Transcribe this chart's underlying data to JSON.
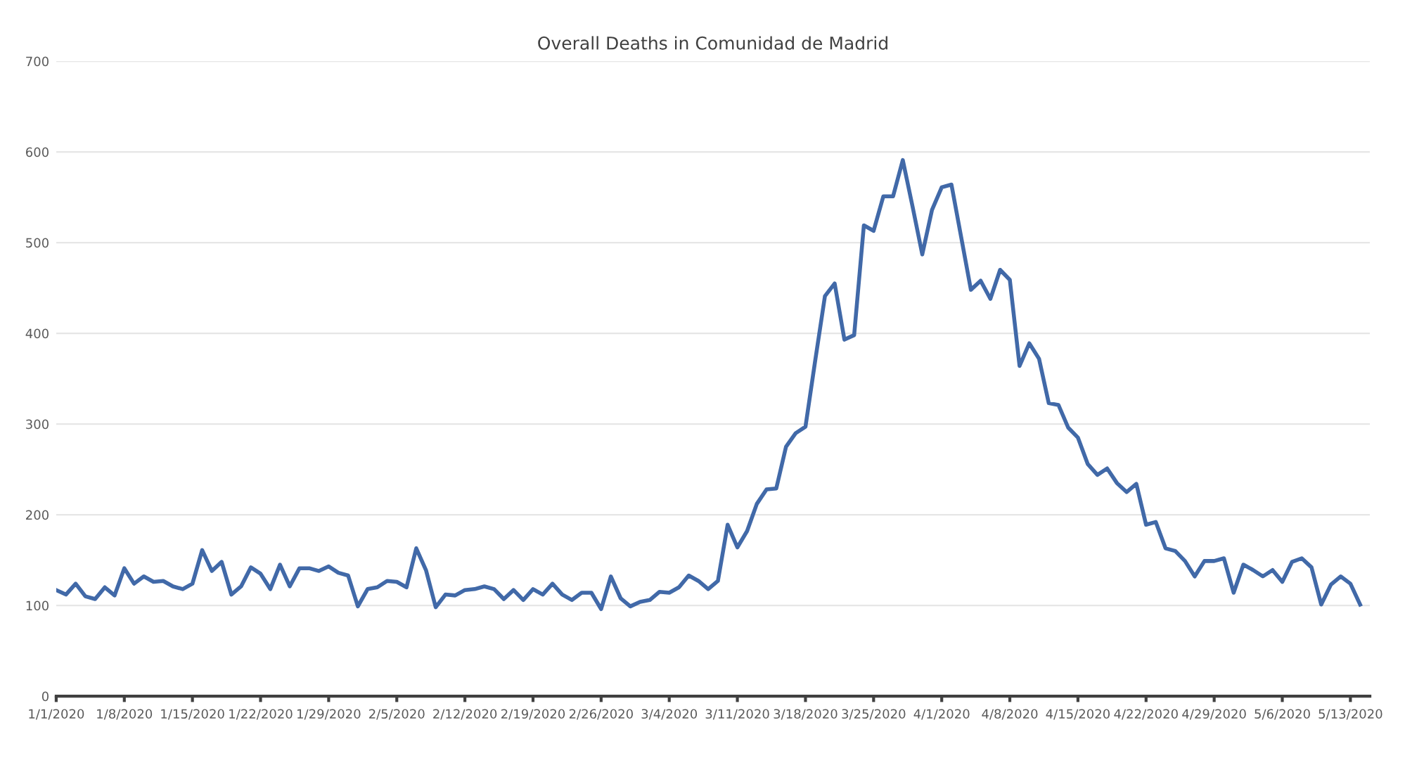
{
  "chart_data": {
    "type": "line",
    "title": "Overall Deaths in Comunidad de Madrid",
    "x": [
      "2020-01-01",
      "2020-01-02",
      "2020-01-03",
      "2020-01-04",
      "2020-01-05",
      "2020-01-06",
      "2020-01-07",
      "2020-01-08",
      "2020-01-09",
      "2020-01-10",
      "2020-01-11",
      "2020-01-12",
      "2020-01-13",
      "2020-01-14",
      "2020-01-15",
      "2020-01-16",
      "2020-01-17",
      "2020-01-18",
      "2020-01-19",
      "2020-01-20",
      "2020-01-21",
      "2020-01-22",
      "2020-01-23",
      "2020-01-24",
      "2020-01-25",
      "2020-01-26",
      "2020-01-27",
      "2020-01-28",
      "2020-01-29",
      "2020-01-30",
      "2020-01-31",
      "2020-02-01",
      "2020-02-02",
      "2020-02-03",
      "2020-02-04",
      "2020-02-05",
      "2020-02-06",
      "2020-02-07",
      "2020-02-08",
      "2020-02-09",
      "2020-02-10",
      "2020-02-11",
      "2020-02-12",
      "2020-02-13",
      "2020-02-14",
      "2020-02-15",
      "2020-02-16",
      "2020-02-17",
      "2020-02-18",
      "2020-02-19",
      "2020-02-20",
      "2020-02-21",
      "2020-02-22",
      "2020-02-23",
      "2020-02-24",
      "2020-02-25",
      "2020-02-26",
      "2020-02-27",
      "2020-02-28",
      "2020-02-29",
      "2020-03-01",
      "2020-03-02",
      "2020-03-03",
      "2020-03-04",
      "2020-03-05",
      "2020-03-06",
      "2020-03-07",
      "2020-03-08",
      "2020-03-09",
      "2020-03-10",
      "2020-03-11",
      "2020-03-12",
      "2020-03-13",
      "2020-03-14",
      "2020-03-15",
      "2020-03-16",
      "2020-03-17",
      "2020-03-18",
      "2020-03-19",
      "2020-03-20",
      "2020-03-21",
      "2020-03-22",
      "2020-03-23",
      "2020-03-24",
      "2020-03-25",
      "2020-03-26",
      "2020-03-27",
      "2020-03-28",
      "2020-03-29",
      "2020-03-30",
      "2020-03-31",
      "2020-04-01",
      "2020-04-02",
      "2020-04-03",
      "2020-04-04",
      "2020-04-05",
      "2020-04-06",
      "2020-04-07",
      "2020-04-08",
      "2020-04-09",
      "2020-04-10",
      "2020-04-11",
      "2020-04-12",
      "2020-04-13",
      "2020-04-14",
      "2020-04-15",
      "2020-04-16",
      "2020-04-17",
      "2020-04-18",
      "2020-04-19",
      "2020-04-20",
      "2020-04-21",
      "2020-04-22",
      "2020-04-23",
      "2020-04-24",
      "2020-04-25",
      "2020-04-26",
      "2020-04-27",
      "2020-04-28",
      "2020-04-29",
      "2020-04-30",
      "2020-05-01",
      "2020-05-02",
      "2020-05-03",
      "2020-05-04",
      "2020-05-05",
      "2020-05-06",
      "2020-05-07",
      "2020-05-08",
      "2020-05-09",
      "2020-05-10",
      "2020-05-11",
      "2020-05-12",
      "2020-05-13",
      "2020-05-14"
    ],
    "series": [
      {
        "color": "#4169a8",
        "values": [
          117,
          112,
          124,
          110,
          107,
          120,
          111,
          141,
          124,
          132,
          126,
          127,
          121,
          118,
          124,
          161,
          138,
          148,
          112,
          121,
          142,
          135,
          118,
          145,
          121,
          141,
          141,
          138,
          143,
          136,
          133,
          99,
          118,
          120,
          127,
          126,
          120,
          163,
          139,
          98,
          112,
          111,
          117,
          118,
          121,
          118,
          107,
          117,
          106,
          118,
          112,
          124,
          112,
          106,
          114,
          114,
          96,
          132,
          108,
          99,
          104,
          106,
          115,
          114,
          120,
          133,
          127,
          118,
          127,
          189,
          164,
          182,
          212,
          228,
          229,
          275,
          290,
          297,
          370,
          441,
          455,
          393,
          398,
          519,
          513,
          551,
          551,
          591,
          540,
          487,
          536,
          561,
          564,
          506,
          448,
          458,
          438,
          470,
          459,
          364,
          389,
          372,
          323,
          321,
          296,
          285,
          256,
          244,
          251,
          235,
          225,
          234,
          189,
          192,
          163,
          160,
          149,
          132,
          149,
          149,
          152,
          114,
          145,
          139,
          132,
          139,
          126,
          148,
          152,
          142,
          101,
          123,
          132,
          124,
          101
        ]
      }
    ],
    "xlim": [
      "2020-01-01",
      "2020-05-15"
    ],
    "xticks": [
      {
        "value": "2020-01-01",
        "label": "1/1/2020"
      },
      {
        "value": "2020-01-08",
        "label": "1/8/2020"
      },
      {
        "value": "2020-01-15",
        "label": "1/15/2020"
      },
      {
        "value": "2020-01-22",
        "label": "1/22/2020"
      },
      {
        "value": "2020-01-29",
        "label": "1/29/2020"
      },
      {
        "value": "2020-02-05",
        "label": "2/5/2020"
      },
      {
        "value": "2020-02-12",
        "label": "2/12/2020"
      },
      {
        "value": "2020-02-19",
        "label": "2/19/2020"
      },
      {
        "value": "2020-02-26",
        "label": "2/26/2020"
      },
      {
        "value": "2020-03-04",
        "label": "3/4/2020"
      },
      {
        "value": "2020-03-11",
        "label": "3/11/2020"
      },
      {
        "value": "2020-03-18",
        "label": "3/18/2020"
      },
      {
        "value": "2020-03-25",
        "label": "3/25/2020"
      },
      {
        "value": "2020-04-01",
        "label": "4/1/2020"
      },
      {
        "value": "2020-04-08",
        "label": "4/8/2020"
      },
      {
        "value": "2020-04-15",
        "label": "4/15/2020"
      },
      {
        "value": "2020-04-22",
        "label": "4/22/2020"
      },
      {
        "value": "2020-04-29",
        "label": "4/29/2020"
      },
      {
        "value": "2020-05-06",
        "label": "5/6/2020"
      },
      {
        "value": "2020-05-13",
        "label": "5/13/2020"
      }
    ],
    "ylim": [
      0,
      700
    ],
    "yticks": [
      0,
      100,
      200,
      300,
      400,
      500,
      600,
      700
    ],
    "grid": "y",
    "legend": false,
    "marker": "none",
    "line_style": "solid"
  }
}
